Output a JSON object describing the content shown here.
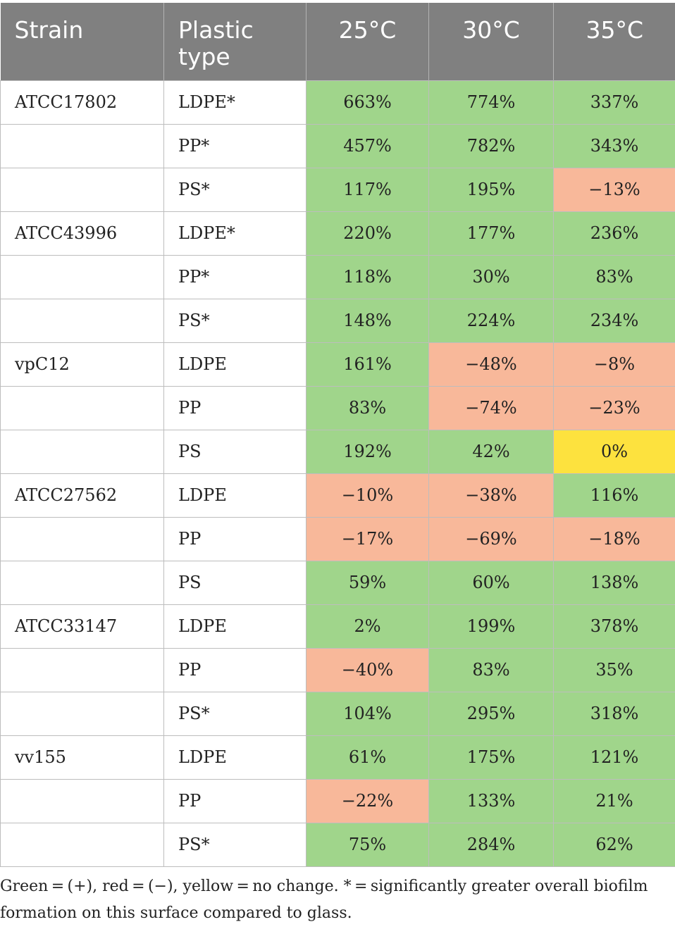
{
  "table": {
    "headers": [
      "Strain",
      "Plastic type",
      "25°C",
      "30°C",
      "35°C"
    ],
    "rows": [
      {
        "strain": "ATCC17802",
        "plastic": "LDPE*",
        "values": [
          "663%",
          "774%",
          "337%"
        ],
        "signs": [
          "pos",
          "pos",
          "pos"
        ]
      },
      {
        "strain": "",
        "plastic": "PP*",
        "values": [
          "457%",
          "782%",
          "343%"
        ],
        "signs": [
          "pos",
          "pos",
          "pos"
        ]
      },
      {
        "strain": "",
        "plastic": "PS*",
        "values": [
          "117%",
          "195%",
          "−13%"
        ],
        "signs": [
          "pos",
          "pos",
          "neg"
        ]
      },
      {
        "strain": "ATCC43996",
        "plastic": "LDPE*",
        "values": [
          "220%",
          "177%",
          "236%"
        ],
        "signs": [
          "pos",
          "pos",
          "pos"
        ]
      },
      {
        "strain": "",
        "plastic": "PP*",
        "values": [
          "118%",
          "30%",
          "83%"
        ],
        "signs": [
          "pos",
          "pos",
          "pos"
        ]
      },
      {
        "strain": "",
        "plastic": "PS*",
        "values": [
          "148%",
          "224%",
          "234%"
        ],
        "signs": [
          "pos",
          "pos",
          "pos"
        ]
      },
      {
        "strain": "vpC12",
        "plastic": "LDPE",
        "values": [
          "161%",
          "−48%",
          "−8%"
        ],
        "signs": [
          "pos",
          "neg",
          "neg"
        ]
      },
      {
        "strain": "",
        "plastic": "PP",
        "values": [
          "83%",
          "−74%",
          "−23%"
        ],
        "signs": [
          "pos",
          "neg",
          "neg"
        ]
      },
      {
        "strain": "",
        "plastic": "PS",
        "values": [
          "192%",
          "42%",
          "0%"
        ],
        "signs": [
          "pos",
          "pos",
          "zero"
        ]
      },
      {
        "strain": "ATCC27562",
        "plastic": "LDPE",
        "values": [
          "−10%",
          "−38%",
          "116%"
        ],
        "signs": [
          "neg",
          "neg",
          "pos"
        ]
      },
      {
        "strain": "",
        "plastic": "PP",
        "values": [
          "−17%",
          "−69%",
          "−18%"
        ],
        "signs": [
          "neg",
          "neg",
          "neg"
        ]
      },
      {
        "strain": "",
        "plastic": "PS",
        "values": [
          "59%",
          "60%",
          "138%"
        ],
        "signs": [
          "pos",
          "pos",
          "pos"
        ]
      },
      {
        "strain": "ATCC33147",
        "plastic": "LDPE",
        "values": [
          "2%",
          "199%",
          "378%"
        ],
        "signs": [
          "pos",
          "pos",
          "pos"
        ]
      },
      {
        "strain": "",
        "plastic": "PP",
        "values": [
          "−40%",
          "83%",
          "35%"
        ],
        "signs": [
          "neg",
          "pos",
          "pos"
        ]
      },
      {
        "strain": "",
        "plastic": "PS*",
        "values": [
          "104%",
          "295%",
          "318%"
        ],
        "signs": [
          "pos",
          "pos",
          "pos"
        ]
      },
      {
        "strain": "vv155",
        "plastic": "LDPE",
        "values": [
          "61%",
          "175%",
          "121%"
        ],
        "signs": [
          "pos",
          "pos",
          "pos"
        ]
      },
      {
        "strain": "",
        "plastic": "PP",
        "values": [
          "−22%",
          "133%",
          "21%"
        ],
        "signs": [
          "neg",
          "pos",
          "pos"
        ]
      },
      {
        "strain": "",
        "plastic": "PS*",
        "values": [
          "75%",
          "284%",
          "62%"
        ],
        "signs": [
          "pos",
          "pos",
          "pos"
        ]
      }
    ]
  },
  "colors": {
    "header_bg": "#808080",
    "positive": "#a0d58b",
    "negative": "#f8b89a",
    "no_change": "#fde23e"
  },
  "footnote": "Green = (+), red = (−), yellow = no change. * = significantly greater overall biofilm formation on this surface compared to glass."
}
